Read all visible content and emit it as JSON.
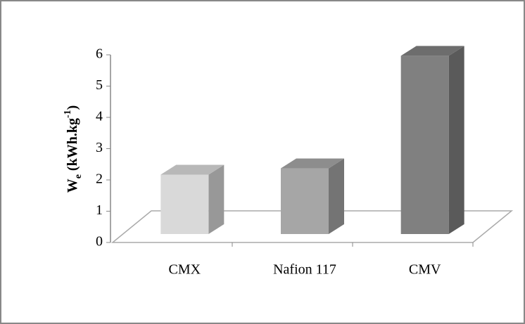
{
  "chart_data": {
    "type": "bar3d",
    "y_label_parts": [
      "W",
      "e",
      " (kWh.kg",
      "-1",
      ")"
    ],
    "categories": [
      "CMX",
      "Nafion 117",
      "CMV"
    ],
    "values": [
      1.9,
      2.1,
      5.7
    ],
    "colors": [
      "#d9d9d9",
      "#a6a6a6",
      "#808080"
    ],
    "ylim": [
      0,
      6
    ],
    "yticks": [
      0,
      1,
      2,
      3,
      4,
      5,
      6
    ]
  }
}
